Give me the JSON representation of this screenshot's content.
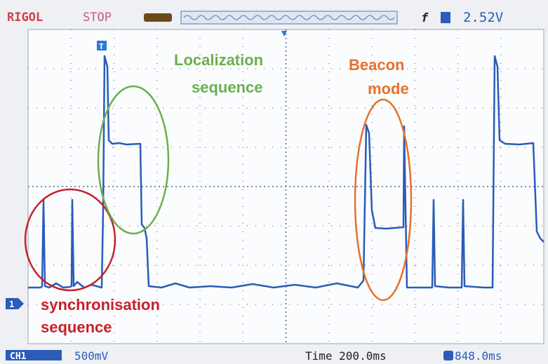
{
  "header": {
    "brand": "RIGOL",
    "status": "STOP",
    "trigger_level": "2.52V",
    "trigger_marker": "T"
  },
  "annotations": {
    "localization": [
      "Localization",
      "sequence"
    ],
    "beacon": [
      "Beacon",
      "mode"
    ],
    "synchronisation": [
      "synchronisation",
      "sequence"
    ]
  },
  "channel_marker": "1",
  "footer": {
    "channel": "CH1",
    "scale": "500mV",
    "time": "Time 200.0ms",
    "offset": "848.0ms"
  }
}
